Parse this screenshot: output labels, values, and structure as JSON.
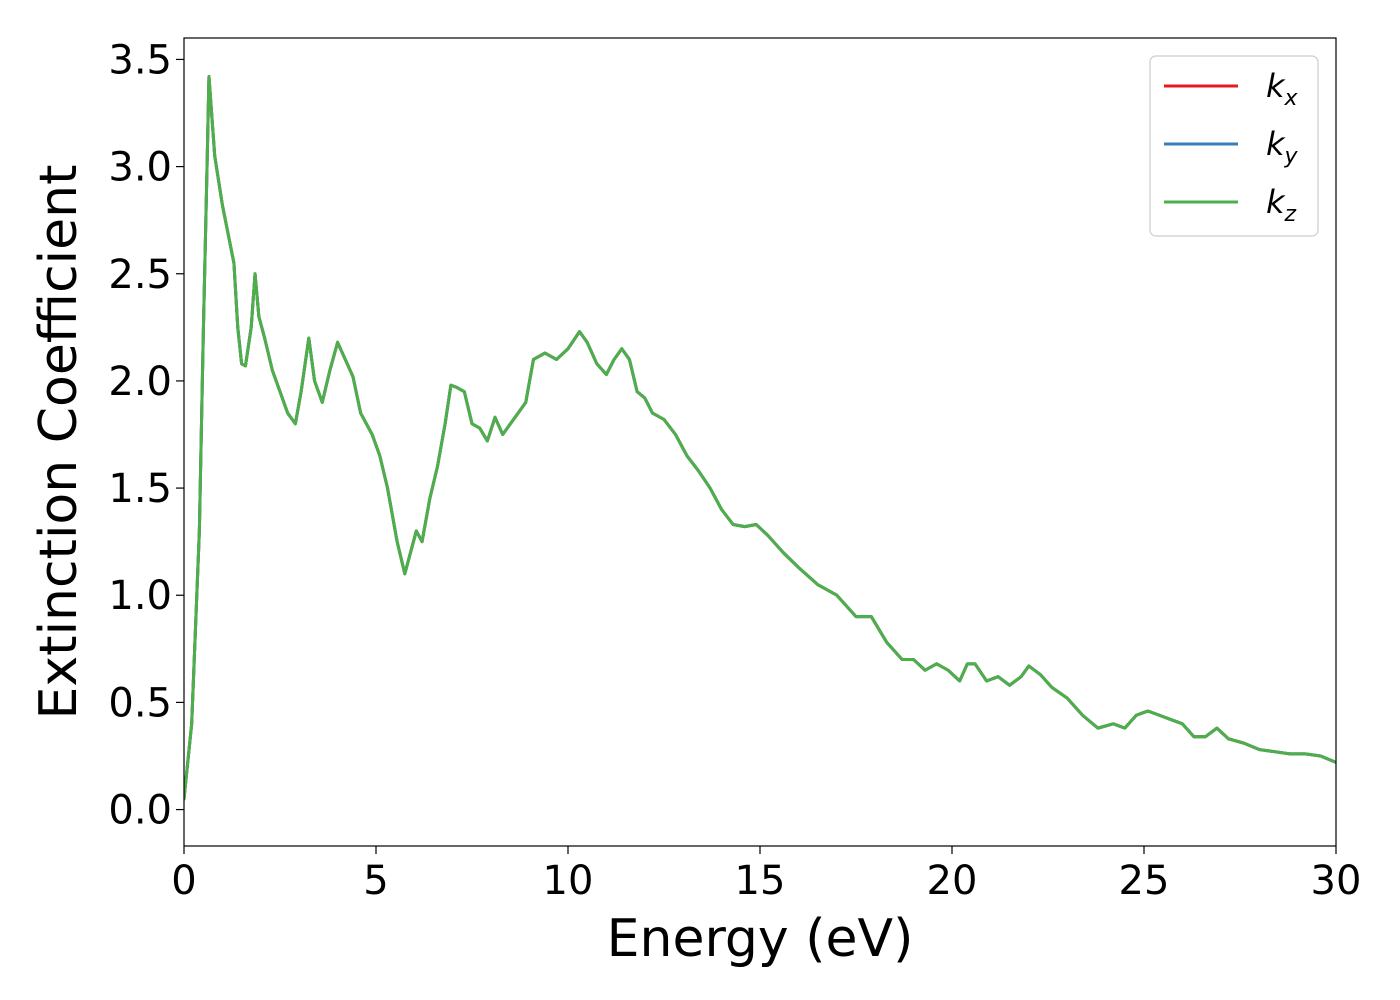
{
  "chart_data": {
    "type": "line",
    "title": "",
    "xlabel": "Energy (eV)",
    "ylabel": "Extinction Coefficient",
    "xlim": [
      0,
      30
    ],
    "ylim": [
      -0.17,
      3.6
    ],
    "xticks": [
      0,
      5,
      10,
      15,
      20,
      25,
      30
    ],
    "xtick_labels": [
      "0",
      "5",
      "10",
      "15",
      "20",
      "25",
      "30"
    ],
    "yticks": [
      0.0,
      0.5,
      1.0,
      1.5,
      2.0,
      2.5,
      3.0,
      3.5
    ],
    "ytick_labels": [
      "0.0",
      "0.5",
      "1.0",
      "1.5",
      "2.0",
      "2.5",
      "3.0",
      "3.5"
    ],
    "grid": false,
    "legend_position": "top-right",
    "series": [
      {
        "name": "k_x",
        "label_base": "k",
        "label_sub": "x",
        "color": "#e41a1c",
        "x": [
          0,
          0.2,
          0.4,
          0.5,
          0.6,
          0.65,
          0.8,
          1.0,
          1.3,
          1.4,
          1.5,
          1.6,
          1.75,
          1.85,
          1.95,
          2.1,
          2.3,
          2.5,
          2.7,
          2.9,
          3.05,
          3.25,
          3.4,
          3.6,
          3.8,
          4.0,
          4.2,
          4.4,
          4.6,
          4.9,
          5.1,
          5.3,
          5.55,
          5.75,
          5.9,
          6.05,
          6.2,
          6.4,
          6.6,
          6.8,
          6.95,
          7.1,
          7.3,
          7.5,
          7.7,
          7.9,
          8.1,
          8.3,
          8.5,
          8.7,
          8.9,
          9.1,
          9.4,
          9.7,
          10.0,
          10.3,
          10.5,
          10.75,
          11.0,
          11.2,
          11.4,
          11.6,
          11.8,
          12.0,
          12.2,
          12.5,
          12.8,
          13.1,
          13.4,
          13.7,
          14.0,
          14.3,
          14.6,
          14.9,
          15.2,
          15.6,
          16.0,
          16.5,
          17.0,
          17.5,
          17.9,
          18.3,
          18.7,
          19.0,
          19.3,
          19.6,
          19.9,
          20.2,
          20.4,
          20.6,
          20.9,
          21.2,
          21.5,
          21.8,
          22.0,
          22.3,
          22.6,
          23.0,
          23.4,
          23.8,
          24.2,
          24.5,
          24.8,
          25.1,
          25.4,
          25.7,
          26.0,
          26.3,
          26.6,
          26.9,
          27.2,
          27.6,
          28.0,
          28.4,
          28.8,
          29.2,
          29.6,
          30.0
        ],
        "y": [
          0.05,
          0.4,
          1.3,
          2.2,
          3.0,
          3.42,
          3.05,
          2.82,
          2.55,
          2.25,
          2.08,
          2.07,
          2.25,
          2.5,
          2.3,
          2.2,
          2.05,
          1.95,
          1.85,
          1.8,
          1.95,
          2.2,
          2.0,
          1.9,
          2.05,
          2.18,
          2.1,
          2.02,
          1.85,
          1.75,
          1.65,
          1.5,
          1.25,
          1.1,
          1.2,
          1.3,
          1.25,
          1.45,
          1.6,
          1.8,
          1.98,
          1.97,
          1.95,
          1.8,
          1.78,
          1.72,
          1.83,
          1.75,
          1.8,
          1.85,
          1.9,
          2.1,
          2.13,
          2.1,
          2.15,
          2.23,
          2.18,
          2.08,
          2.03,
          2.1,
          2.15,
          2.1,
          1.95,
          1.92,
          1.85,
          1.82,
          1.75,
          1.65,
          1.58,
          1.5,
          1.4,
          1.33,
          1.32,
          1.33,
          1.28,
          1.2,
          1.13,
          1.05,
          1.0,
          0.9,
          0.9,
          0.78,
          0.7,
          0.7,
          0.65,
          0.68,
          0.65,
          0.6,
          0.68,
          0.68,
          0.6,
          0.62,
          0.58,
          0.62,
          0.67,
          0.63,
          0.57,
          0.52,
          0.44,
          0.38,
          0.4,
          0.38,
          0.44,
          0.46,
          0.44,
          0.42,
          0.4,
          0.34,
          0.34,
          0.38,
          0.33,
          0.31,
          0.28,
          0.27,
          0.26,
          0.26,
          0.25,
          0.22
        ]
      },
      {
        "name": "k_y",
        "label_base": "k",
        "label_sub": "y",
        "color": "#377eb8",
        "x": [
          0,
          0.2,
          0.4,
          0.5,
          0.6,
          0.65,
          0.8,
          1.0,
          1.3,
          1.4,
          1.5,
          1.6,
          1.75,
          1.85,
          1.95,
          2.1,
          2.3,
          2.5,
          2.7,
          2.9,
          3.05,
          3.25,
          3.4,
          3.6,
          3.8,
          4.0,
          4.2,
          4.4,
          4.6,
          4.9,
          5.1,
          5.3,
          5.55,
          5.75,
          5.9,
          6.05,
          6.2,
          6.4,
          6.6,
          6.8,
          6.95,
          7.1,
          7.3,
          7.5,
          7.7,
          7.9,
          8.1,
          8.3,
          8.5,
          8.7,
          8.9,
          9.1,
          9.4,
          9.7,
          10.0,
          10.3,
          10.5,
          10.75,
          11.0,
          11.2,
          11.4,
          11.6,
          11.8,
          12.0,
          12.2,
          12.5,
          12.8,
          13.1,
          13.4,
          13.7,
          14.0,
          14.3,
          14.6,
          14.9,
          15.2,
          15.6,
          16.0,
          16.5,
          17.0,
          17.5,
          17.9,
          18.3,
          18.7,
          19.0,
          19.3,
          19.6,
          19.9,
          20.2,
          20.4,
          20.6,
          20.9,
          21.2,
          21.5,
          21.8,
          22.0,
          22.3,
          22.6,
          23.0,
          23.4,
          23.8,
          24.2,
          24.5,
          24.8,
          25.1,
          25.4,
          25.7,
          26.0,
          26.3,
          26.6,
          26.9,
          27.2,
          27.6,
          28.0,
          28.4,
          28.8,
          29.2,
          29.6,
          30.0
        ],
        "y": [
          0.05,
          0.4,
          1.3,
          2.2,
          3.0,
          3.42,
          3.05,
          2.82,
          2.55,
          2.25,
          2.08,
          2.07,
          2.25,
          2.5,
          2.3,
          2.2,
          2.05,
          1.95,
          1.85,
          1.8,
          1.95,
          2.2,
          2.0,
          1.9,
          2.05,
          2.18,
          2.1,
          2.02,
          1.85,
          1.75,
          1.65,
          1.5,
          1.25,
          1.1,
          1.2,
          1.3,
          1.25,
          1.45,
          1.6,
          1.8,
          1.98,
          1.97,
          1.95,
          1.8,
          1.78,
          1.72,
          1.83,
          1.75,
          1.8,
          1.85,
          1.9,
          2.1,
          2.13,
          2.1,
          2.15,
          2.23,
          2.18,
          2.08,
          2.03,
          2.1,
          2.15,
          2.1,
          1.95,
          1.92,
          1.85,
          1.82,
          1.75,
          1.65,
          1.58,
          1.5,
          1.4,
          1.33,
          1.32,
          1.33,
          1.28,
          1.2,
          1.13,
          1.05,
          1.0,
          0.9,
          0.9,
          0.78,
          0.7,
          0.7,
          0.65,
          0.68,
          0.65,
          0.6,
          0.68,
          0.68,
          0.6,
          0.62,
          0.58,
          0.62,
          0.67,
          0.63,
          0.57,
          0.52,
          0.44,
          0.38,
          0.4,
          0.38,
          0.44,
          0.46,
          0.44,
          0.42,
          0.4,
          0.34,
          0.34,
          0.38,
          0.33,
          0.31,
          0.28,
          0.27,
          0.26,
          0.26,
          0.25,
          0.22
        ]
      },
      {
        "name": "k_z",
        "label_base": "k",
        "label_sub": "z",
        "color": "#4daf4a",
        "x": [
          0,
          0.2,
          0.4,
          0.5,
          0.6,
          0.65,
          0.8,
          1.0,
          1.3,
          1.4,
          1.5,
          1.6,
          1.75,
          1.85,
          1.95,
          2.1,
          2.3,
          2.5,
          2.7,
          2.9,
          3.05,
          3.25,
          3.4,
          3.6,
          3.8,
          4.0,
          4.2,
          4.4,
          4.6,
          4.9,
          5.1,
          5.3,
          5.55,
          5.75,
          5.9,
          6.05,
          6.2,
          6.4,
          6.6,
          6.8,
          6.95,
          7.1,
          7.3,
          7.5,
          7.7,
          7.9,
          8.1,
          8.3,
          8.5,
          8.7,
          8.9,
          9.1,
          9.4,
          9.7,
          10.0,
          10.3,
          10.5,
          10.75,
          11.0,
          11.2,
          11.4,
          11.6,
          11.8,
          12.0,
          12.2,
          12.5,
          12.8,
          13.1,
          13.4,
          13.7,
          14.0,
          14.3,
          14.6,
          14.9,
          15.2,
          15.6,
          16.0,
          16.5,
          17.0,
          17.5,
          17.9,
          18.3,
          18.7,
          19.0,
          19.3,
          19.6,
          19.9,
          20.2,
          20.4,
          20.6,
          20.9,
          21.2,
          21.5,
          21.8,
          22.0,
          22.3,
          22.6,
          23.0,
          23.4,
          23.8,
          24.2,
          24.5,
          24.8,
          25.1,
          25.4,
          25.7,
          26.0,
          26.3,
          26.6,
          26.9,
          27.2,
          27.6,
          28.0,
          28.4,
          28.8,
          29.2,
          29.6,
          30.0
        ],
        "y": [
          0.05,
          0.4,
          1.3,
          2.2,
          3.0,
          3.42,
          3.05,
          2.82,
          2.55,
          2.25,
          2.08,
          2.07,
          2.25,
          2.5,
          2.3,
          2.2,
          2.05,
          1.95,
          1.85,
          1.8,
          1.95,
          2.2,
          2.0,
          1.9,
          2.05,
          2.18,
          2.1,
          2.02,
          1.85,
          1.75,
          1.65,
          1.5,
          1.25,
          1.1,
          1.2,
          1.3,
          1.25,
          1.45,
          1.6,
          1.8,
          1.98,
          1.97,
          1.95,
          1.8,
          1.78,
          1.72,
          1.83,
          1.75,
          1.8,
          1.85,
          1.9,
          2.1,
          2.13,
          2.1,
          2.15,
          2.23,
          2.18,
          2.08,
          2.03,
          2.1,
          2.15,
          2.1,
          1.95,
          1.92,
          1.85,
          1.82,
          1.75,
          1.65,
          1.58,
          1.5,
          1.4,
          1.33,
          1.32,
          1.33,
          1.28,
          1.2,
          1.13,
          1.05,
          1.0,
          0.9,
          0.9,
          0.78,
          0.7,
          0.7,
          0.65,
          0.68,
          0.65,
          0.6,
          0.68,
          0.68,
          0.6,
          0.62,
          0.58,
          0.62,
          0.67,
          0.63,
          0.57,
          0.52,
          0.44,
          0.38,
          0.4,
          0.38,
          0.44,
          0.46,
          0.44,
          0.42,
          0.4,
          0.34,
          0.34,
          0.38,
          0.33,
          0.31,
          0.28,
          0.27,
          0.26,
          0.26,
          0.25,
          0.22
        ]
      }
    ]
  }
}
